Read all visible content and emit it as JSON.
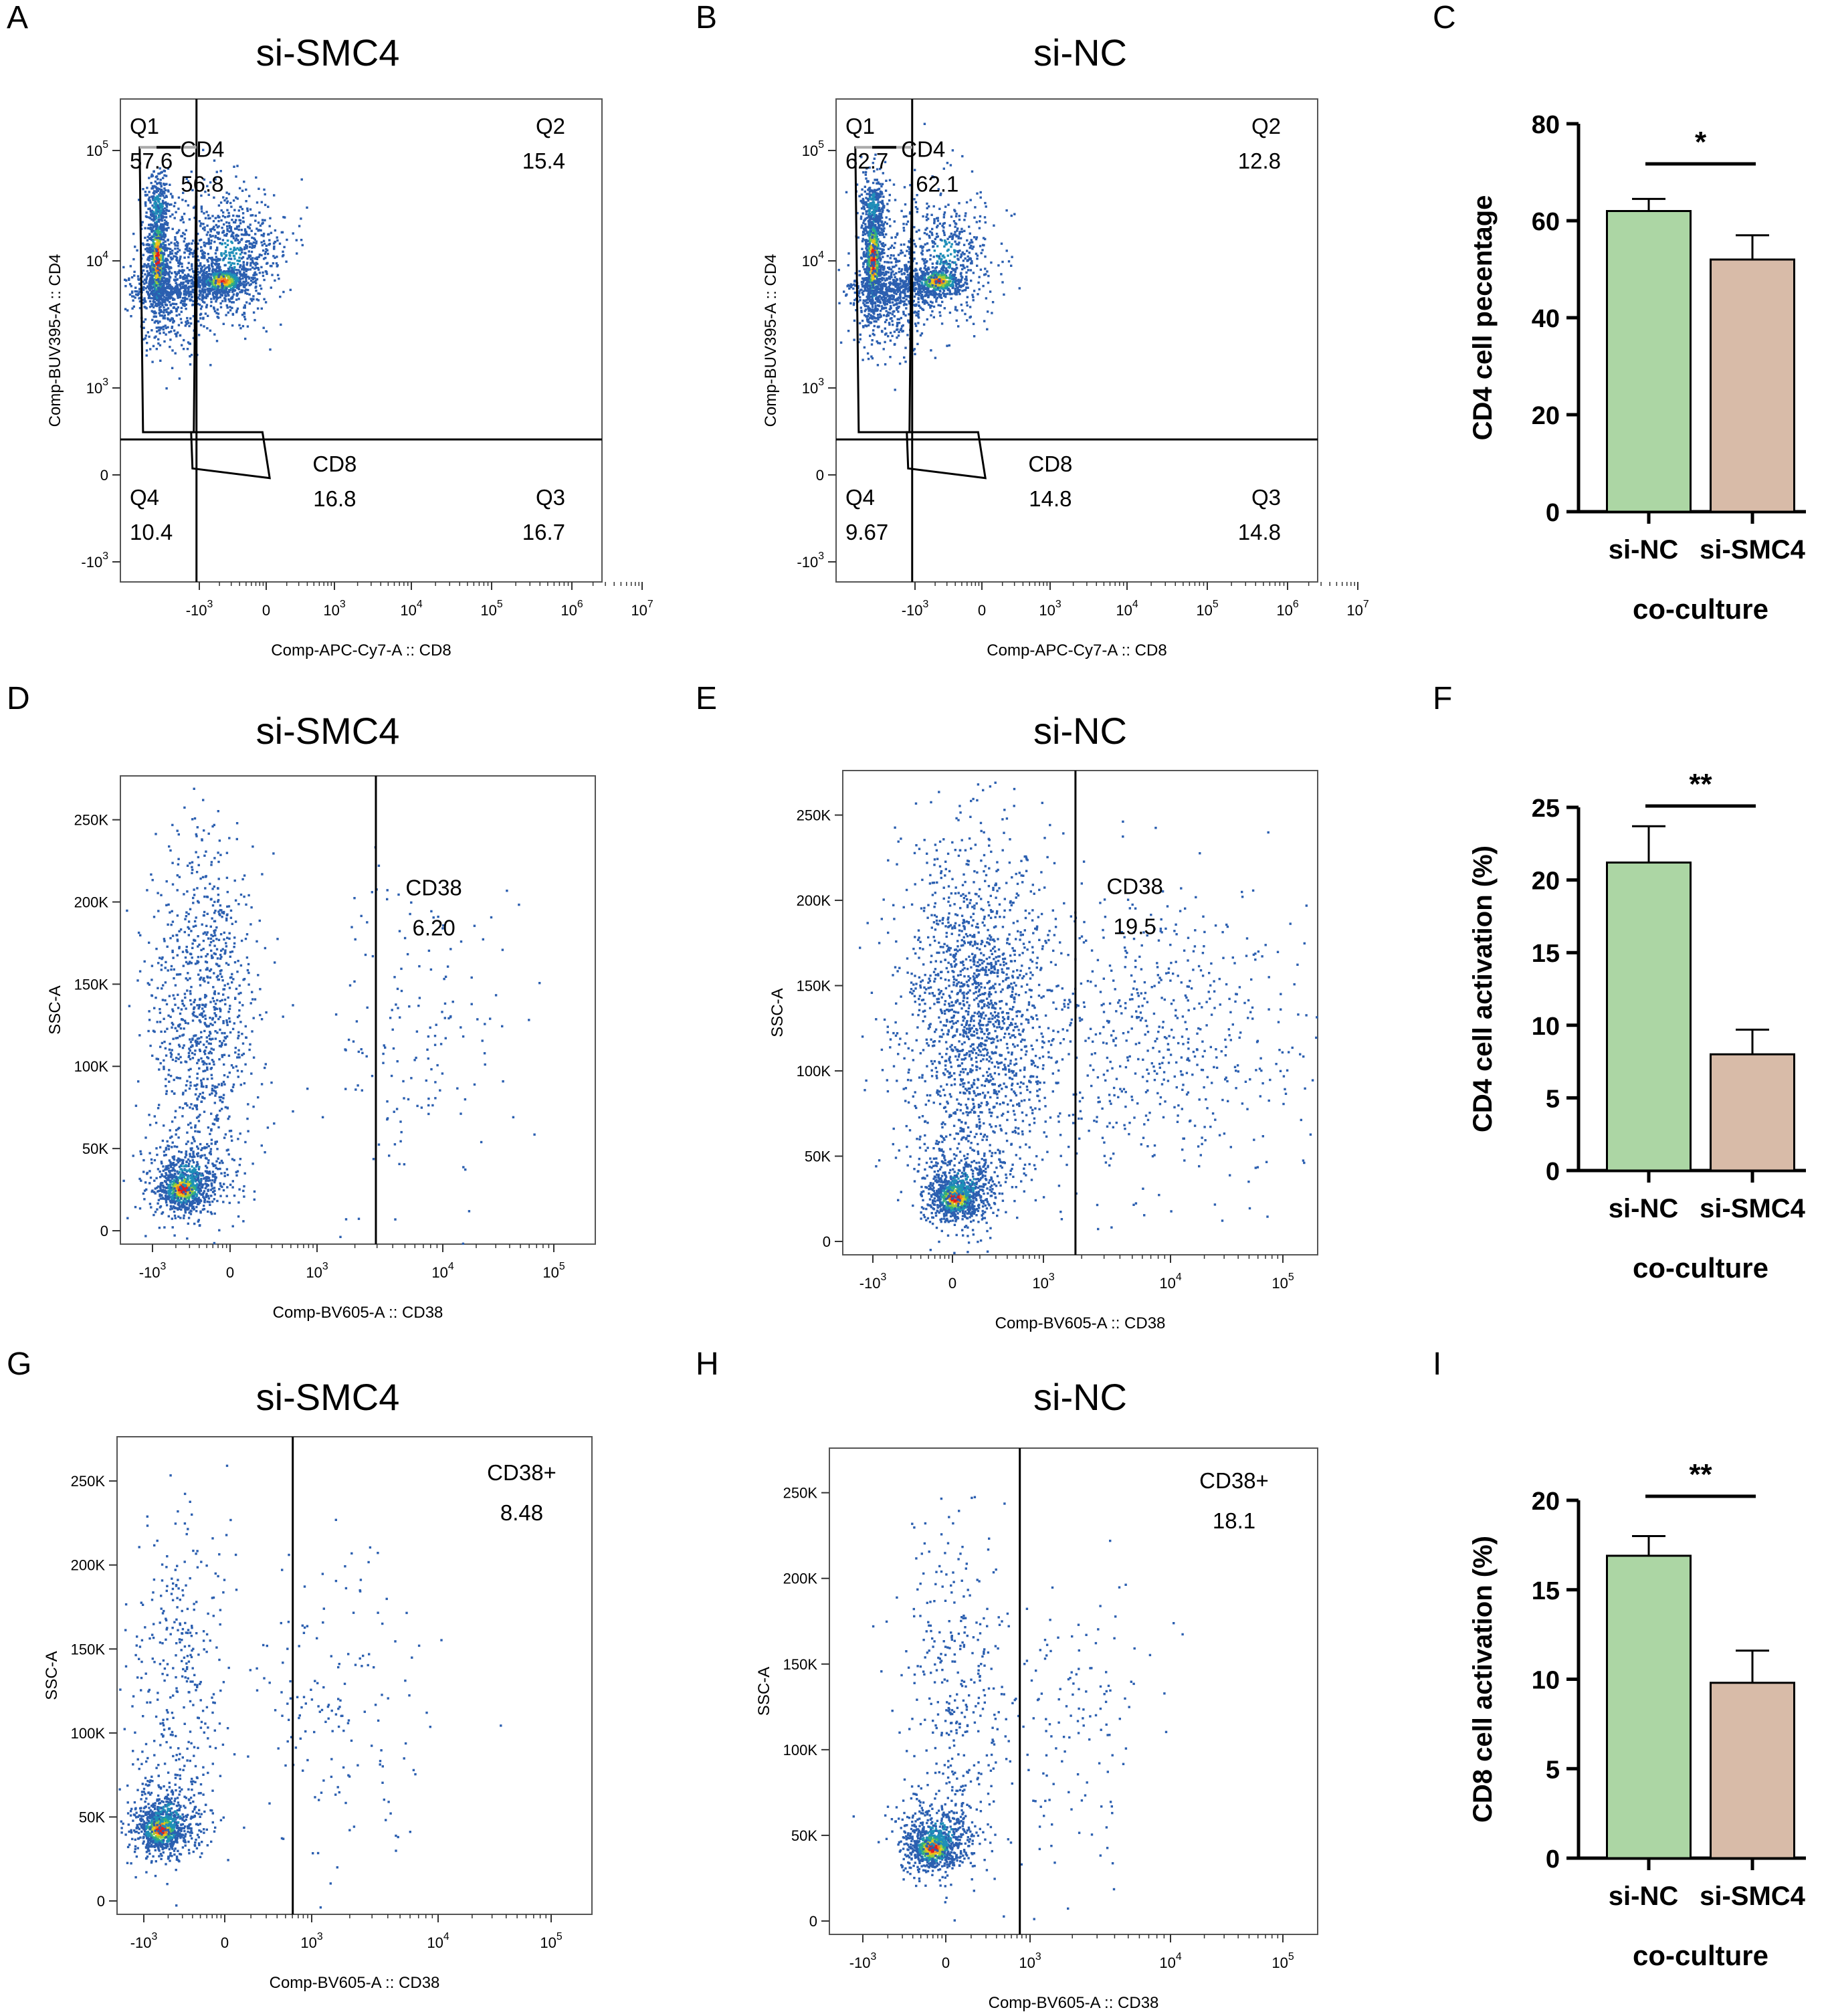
{
  "chart_data": [
    {
      "id": "A",
      "panel_label": "A",
      "type": "scatter",
      "title": "si-SMC4",
      "xlabel": "Comp-APC-Cy7-A :: CD8",
      "ylabel": "Comp-BUV395-A :: CD4",
      "x_ticks": [
        {
          "base": "-10",
          "exp": "3"
        },
        {
          "base": "0",
          "exp": ""
        },
        {
          "base": "10",
          "exp": "3"
        },
        {
          "base": "10",
          "exp": "4"
        },
        {
          "base": "10",
          "exp": "5"
        },
        {
          "base": "10",
          "exp": "6"
        },
        {
          "base": "10",
          "exp": "7"
        }
      ],
      "y_ticks": [
        {
          "base": "-10",
          "exp": "3"
        },
        {
          "base": "0",
          "exp": ""
        },
        {
          "base": "10",
          "exp": "3"
        },
        {
          "base": "10",
          "exp": "4"
        },
        {
          "base": "10",
          "exp": "5"
        }
      ],
      "annotations": [
        {
          "id": "q1",
          "lines": [
            "Q1",
            "57.6"
          ]
        },
        {
          "id": "q2",
          "lines": [
            "Q2",
            "15.4"
          ]
        },
        {
          "id": "q3",
          "lines": [
            "Q3",
            "16.7"
          ]
        },
        {
          "id": "q4",
          "lines": [
            "Q4",
            "10.4"
          ]
        },
        {
          "id": "cd4-gate",
          "lines": [
            "CD4",
            "56.8"
          ]
        },
        {
          "id": "cd8-gate",
          "lines": [
            "CD8",
            "16.8"
          ]
        }
      ]
    },
    {
      "id": "B",
      "panel_label": "B",
      "type": "scatter",
      "title": "si-NC",
      "xlabel": "Comp-APC-Cy7-A :: CD8",
      "ylabel": "Comp-BUV395-A :: CD4",
      "x_ticks": [
        {
          "base": "-10",
          "exp": "3"
        },
        {
          "base": "0",
          "exp": ""
        },
        {
          "base": "10",
          "exp": "3"
        },
        {
          "base": "10",
          "exp": "4"
        },
        {
          "base": "10",
          "exp": "5"
        },
        {
          "base": "10",
          "exp": "6"
        },
        {
          "base": "10",
          "exp": "7"
        }
      ],
      "y_ticks": [
        {
          "base": "-10",
          "exp": "3"
        },
        {
          "base": "0",
          "exp": ""
        },
        {
          "base": "10",
          "exp": "3"
        },
        {
          "base": "10",
          "exp": "4"
        },
        {
          "base": "10",
          "exp": "5"
        }
      ],
      "annotations": [
        {
          "id": "q1",
          "lines": [
            "Q1",
            "62.7"
          ]
        },
        {
          "id": "q2",
          "lines": [
            "Q2",
            "12.8"
          ]
        },
        {
          "id": "q3",
          "lines": [
            "Q3",
            "14.8"
          ]
        },
        {
          "id": "q4",
          "lines": [
            "Q4",
            "9.67"
          ]
        },
        {
          "id": "cd4-gate",
          "lines": [
            "CD4",
            "62.1"
          ]
        },
        {
          "id": "cd8-gate",
          "lines": [
            "CD8",
            "14.8"
          ]
        }
      ]
    },
    {
      "id": "C",
      "panel_label": "C",
      "type": "bar",
      "categories": [
        "si-NC",
        "si-SMC4"
      ],
      "values": [
        62,
        52
      ],
      "errors": [
        2.5,
        5
      ],
      "colors": [
        "#acd6a4",
        "#d8bba8"
      ],
      "ylabel": "CD4 cell pecentage",
      "xlabel": "co-culture",
      "ylim": [
        0,
        80
      ],
      "yticks": [
        0,
        20,
        40,
        60,
        80
      ],
      "significance": "*"
    },
    {
      "id": "D",
      "panel_label": "D",
      "type": "scatter",
      "title": "si-SMC4",
      "xlabel": "Comp-BV605-A :: CD38",
      "ylabel": "SSC-A",
      "x_ticks": [
        {
          "base": "-10",
          "exp": "3"
        },
        {
          "base": "0",
          "exp": ""
        },
        {
          "base": "10",
          "exp": "3"
        },
        {
          "base": "10",
          "exp": "4"
        },
        {
          "base": "10",
          "exp": "5"
        }
      ],
      "y_ticks": [
        {
          "base": "0",
          "exp": ""
        },
        {
          "base": "50K",
          "exp": ""
        },
        {
          "base": "100K",
          "exp": ""
        },
        {
          "base": "150K",
          "exp": ""
        },
        {
          "base": "200K",
          "exp": ""
        },
        {
          "base": "250K",
          "exp": ""
        }
      ],
      "annotations": [
        {
          "id": "cd38-gate",
          "lines": [
            "CD38",
            "6.20"
          ]
        }
      ]
    },
    {
      "id": "E",
      "panel_label": "E",
      "type": "scatter",
      "title": "si-NC",
      "xlabel": "Comp-BV605-A :: CD38",
      "ylabel": "SSC-A",
      "x_ticks": [
        {
          "base": "-10",
          "exp": "3"
        },
        {
          "base": "0",
          "exp": ""
        },
        {
          "base": "10",
          "exp": "3"
        },
        {
          "base": "10",
          "exp": "4"
        },
        {
          "base": "10",
          "exp": "5"
        }
      ],
      "y_ticks": [
        {
          "base": "0",
          "exp": ""
        },
        {
          "base": "50K",
          "exp": ""
        },
        {
          "base": "100K",
          "exp": ""
        },
        {
          "base": "150K",
          "exp": ""
        },
        {
          "base": "200K",
          "exp": ""
        },
        {
          "base": "250K",
          "exp": ""
        }
      ],
      "annotations": [
        {
          "id": "cd38-gate",
          "lines": [
            "CD38",
            "19.5"
          ]
        }
      ]
    },
    {
      "id": "F",
      "panel_label": "F",
      "type": "bar",
      "categories": [
        "si-NC",
        "si-SMC4"
      ],
      "values": [
        21.2,
        8
      ],
      "errors": [
        2.5,
        1.7
      ],
      "colors": [
        "#acd6a4",
        "#d8bba8"
      ],
      "ylabel": "CD4 cell activation (%)",
      "xlabel": "co-culture",
      "ylim": [
        0,
        25
      ],
      "yticks": [
        0,
        5,
        10,
        15,
        20,
        25
      ],
      "significance": "**"
    },
    {
      "id": "G",
      "panel_label": "G",
      "type": "scatter",
      "title": "si-SMC4",
      "xlabel": "Comp-BV605-A :: CD38",
      "ylabel": "SSC-A",
      "x_ticks": [
        {
          "base": "-10",
          "exp": "3"
        },
        {
          "base": "0",
          "exp": ""
        },
        {
          "base": "10",
          "exp": "3"
        },
        {
          "base": "10",
          "exp": "4"
        },
        {
          "base": "10",
          "exp": "5"
        }
      ],
      "y_ticks": [
        {
          "base": "0",
          "exp": ""
        },
        {
          "base": "50K",
          "exp": ""
        },
        {
          "base": "100K",
          "exp": ""
        },
        {
          "base": "150K",
          "exp": ""
        },
        {
          "base": "200K",
          "exp": ""
        },
        {
          "base": "250K",
          "exp": ""
        }
      ],
      "annotations": [
        {
          "id": "cd38-gate",
          "lines": [
            "CD38+",
            "8.48"
          ]
        }
      ]
    },
    {
      "id": "H",
      "panel_label": "H",
      "type": "scatter",
      "title": "si-NC",
      "xlabel": "Comp-BV605-A :: CD38",
      "ylabel": "SSC-A",
      "x_ticks": [
        {
          "base": "-10",
          "exp": "3"
        },
        {
          "base": "0",
          "exp": ""
        },
        {
          "base": "10",
          "exp": "3"
        },
        {
          "base": "10",
          "exp": "4"
        },
        {
          "base": "10",
          "exp": "5"
        }
      ],
      "y_ticks": [
        {
          "base": "0",
          "exp": ""
        },
        {
          "base": "50K",
          "exp": ""
        },
        {
          "base": "100K",
          "exp": ""
        },
        {
          "base": "150K",
          "exp": ""
        },
        {
          "base": "200K",
          "exp": ""
        },
        {
          "base": "250K",
          "exp": ""
        }
      ],
      "annotations": [
        {
          "id": "cd38-gate",
          "lines": [
            "CD38+",
            "18.1"
          ]
        }
      ]
    },
    {
      "id": "I",
      "panel_label": "I",
      "type": "bar",
      "categories": [
        "si-NC",
        "si-SMC4"
      ],
      "values": [
        16.9,
        9.8
      ],
      "errors": [
        1.1,
        1.8
      ],
      "colors": [
        "#acd6a4",
        "#d8bba8"
      ],
      "ylabel": "CD8 cell activation (%)",
      "xlabel": "co-culture",
      "ylim": [
        0,
        20
      ],
      "yticks": [
        0,
        5,
        10,
        15,
        20
      ],
      "significance": "**"
    }
  ]
}
